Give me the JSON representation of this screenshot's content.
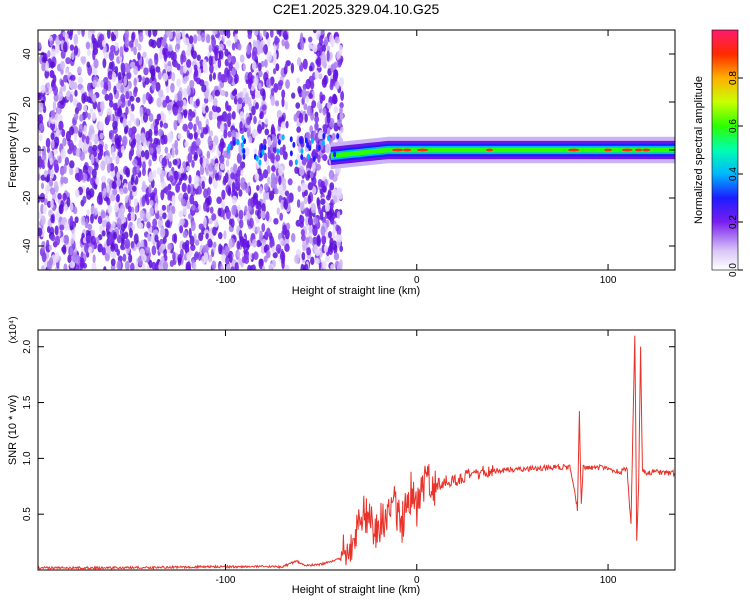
{
  "title": "C2E1.2025.329.04.10.G25",
  "colors": {
    "line": "#e8332b",
    "dots": "#6a16e6",
    "axis": "#000000"
  },
  "chart_data": [
    {
      "type": "heatmap",
      "xlabel": "Height of straight line (km)",
      "ylabel": "Frequency (Hz)",
      "xlim": [
        -198,
        135
      ],
      "ylim": [
        -50,
        50
      ],
      "x_ticks": [
        "-100",
        "0",
        "100"
      ],
      "y_ticks": [
        "-40",
        "-20",
        "0",
        "20",
        "40"
      ],
      "colorbar": {
        "label": "Normalized spectral amplitude",
        "range": [
          0.0,
          1.0
        ],
        "ticks": [
          "0.0",
          "0.2",
          "0.4",
          "0.6",
          "0.8"
        ],
        "colormap": "rainbow (violet-blue-cyan-green-yellow-red-magenta)"
      },
      "features": {
        "noise_region_x": [
          -198,
          -45
        ],
        "signal_line_freq": 0,
        "signal_region_x": [
          -45,
          135
        ]
      }
    },
    {
      "type": "line",
      "xlabel": "Height of straight line (km)",
      "ylabel": "SNR (10 * v/v)",
      "y_multiplier_label": "(x10⁴)",
      "xlim": [
        -198,
        135
      ],
      "ylim": [
        0,
        2.15
      ],
      "x_ticks": [
        "-100",
        "0",
        "100"
      ],
      "y_ticks": [
        "0.5",
        "1.0",
        "1.5",
        "2.0"
      ],
      "series": [
        {
          "x": [
            -198,
            -150,
            -100,
            -70,
            -63,
            -58,
            -50,
            -40,
            -32,
            -28,
            -22,
            -18,
            -12,
            -8,
            -3,
            0,
            5,
            10,
            15,
            20,
            30,
            40,
            50,
            60,
            70,
            80,
            84,
            85,
            86,
            87,
            90,
            95,
            100,
            105,
            110,
            112,
            114,
            115,
            116,
            117,
            118,
            120,
            125,
            130,
            135
          ],
          "y": [
            0.02,
            0.02,
            0.03,
            0.03,
            0.08,
            0.04,
            0.05,
            0.1,
            0.3,
            0.55,
            0.35,
            0.45,
            0.6,
            0.4,
            0.7,
            0.55,
            0.8,
            0.75,
            0.8,
            0.8,
            0.86,
            0.89,
            0.9,
            0.91,
            0.92,
            0.92,
            0.55,
            1.4,
            0.6,
            0.92,
            0.91,
            0.92,
            0.9,
            0.88,
            0.9,
            0.4,
            2.12,
            0.25,
            0.8,
            1.98,
            0.88,
            0.87,
            0.88,
            0.87,
            0.87
          ]
        }
      ]
    }
  ]
}
